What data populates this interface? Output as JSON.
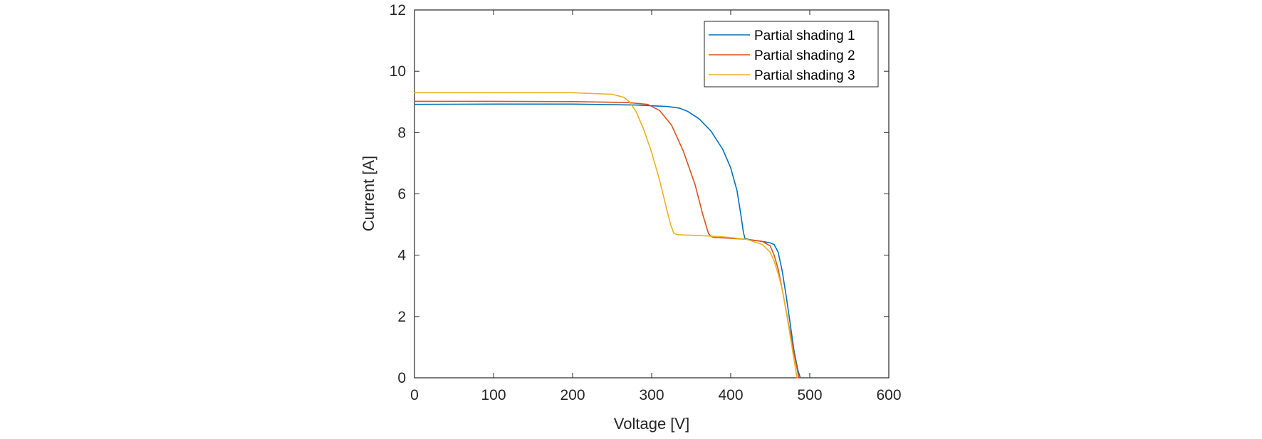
{
  "chart_data": {
    "type": "line",
    "title": "",
    "xlabel": "Voltage [V]",
    "ylabel": "Current [A]",
    "xlim": [
      0,
      600
    ],
    "ylim": [
      0,
      12
    ],
    "xticks": [
      0,
      100,
      200,
      300,
      400,
      500,
      600
    ],
    "yticks": [
      0,
      2,
      4,
      6,
      8,
      10,
      12
    ],
    "grid": false,
    "legend_position": "top-right",
    "series": [
      {
        "name": "Partial shading 1",
        "color": "#0072BD",
        "x": [
          0,
          100,
          200,
          280,
          320,
          335,
          345,
          360,
          375,
          390,
          400,
          408,
          413,
          416,
          418,
          425,
          440,
          450,
          455,
          460,
          465,
          470,
          475,
          480,
          485,
          488
        ],
        "y": [
          8.92,
          8.93,
          8.93,
          8.9,
          8.85,
          8.8,
          8.7,
          8.45,
          8.05,
          7.45,
          6.85,
          6.1,
          5.3,
          4.75,
          4.55,
          4.5,
          4.45,
          4.4,
          4.35,
          4.1,
          3.5,
          2.7,
          1.8,
          0.9,
          0.25,
          0
        ]
      },
      {
        "name": "Partial shading 2",
        "color": "#D95319",
        "x": [
          0,
          100,
          200,
          270,
          295,
          310,
          325,
          340,
          355,
          365,
          372,
          376,
          380,
          400,
          420,
          440,
          450,
          455,
          460,
          465,
          470,
          475,
          480,
          484,
          486
        ],
        "y": [
          9.02,
          9.02,
          9.01,
          8.98,
          8.92,
          8.72,
          8.25,
          7.4,
          6.3,
          5.3,
          4.7,
          4.6,
          4.58,
          4.55,
          4.52,
          4.45,
          4.3,
          4.0,
          3.55,
          2.9,
          2.2,
          1.5,
          0.8,
          0.3,
          0
        ]
      },
      {
        "name": "Partial shading 3",
        "color": "#EDB120",
        "x": [
          0,
          100,
          200,
          250,
          265,
          272,
          280,
          290,
          300,
          310,
          318,
          324,
          328,
          332,
          340,
          360,
          390,
          420,
          440,
          450,
          455,
          460,
          465,
          470,
          475,
          480,
          484
        ],
        "y": [
          9.3,
          9.3,
          9.3,
          9.25,
          9.15,
          9.0,
          8.7,
          8.1,
          7.35,
          6.45,
          5.6,
          5.0,
          4.72,
          4.67,
          4.66,
          4.64,
          4.6,
          4.52,
          4.35,
          4.1,
          3.8,
          3.4,
          2.9,
          2.2,
          1.4,
          0.6,
          0
        ]
      }
    ]
  }
}
